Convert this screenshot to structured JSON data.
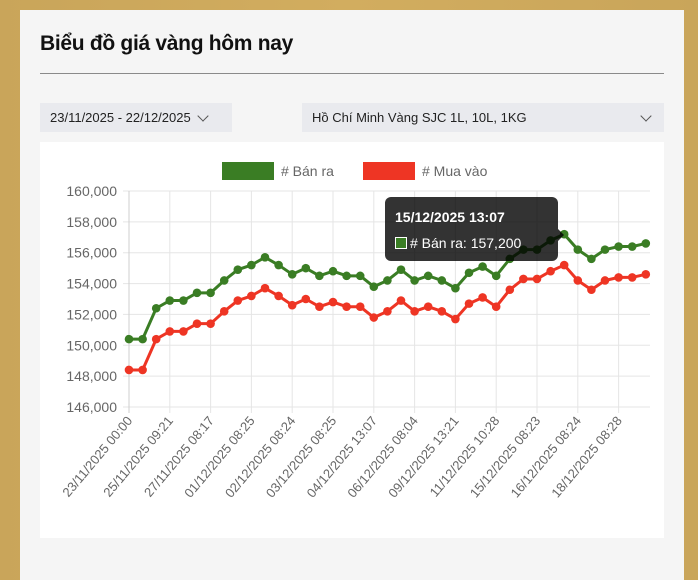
{
  "header": {
    "title": "Biểu đồ giá vàng hôm nay"
  },
  "filters": {
    "date_range": "23/11/2025 - 22/12/2025",
    "product": "Hồ Chí Minh Vàng SJC 1L, 10L, 1KG"
  },
  "colors": {
    "sell": "#3a7d24",
    "buy": "#ee3524",
    "grid": "#e5e5e5",
    "axis_text": "#666666"
  },
  "tooltip": {
    "title": "15/12/2025 13:07",
    "label": "# Bán ra: 157,200",
    "index": 32
  },
  "chart_data": {
    "type": "line",
    "title": "Biểu đồ giá vàng hôm nay",
    "xlabel": "",
    "ylabel": "",
    "ylim": [
      146000,
      160000
    ],
    "y_ticks": [
      160000,
      158000,
      156000,
      154000,
      152000,
      150000,
      148000,
      146000
    ],
    "y_tick_labels": [
      "160,000",
      "158,000",
      "156,000",
      "154,000",
      "152,000",
      "150,000",
      "148,000",
      "146,000"
    ],
    "grid": true,
    "legend_position": "top",
    "x_tick_labels": [
      "23/11/2025 00:00",
      "25/11/2025 09:21",
      "27/11/2025 08:17",
      "01/12/2025 08:25",
      "02/12/2025 08:24",
      "03/12/2025 08:25",
      "04/12/2025 13:07",
      "06/12/2025 08:04",
      "09/12/2025 13:21",
      "11/12/2025 10:28",
      "15/12/2025 08:23",
      "16/12/2025 08:24",
      "18/12/2025 08:28"
    ],
    "x_tick_every": 3,
    "point_count": 39,
    "series": [
      {
        "name": "# Bán ra",
        "color": "#3a7d24",
        "values": [
          150400,
          150400,
          152400,
          152900,
          152900,
          153400,
          153400,
          154200,
          154900,
          155200,
          155700,
          155200,
          154600,
          155000,
          154500,
          154800,
          154500,
          154500,
          153800,
          154200,
          154900,
          154200,
          154500,
          154200,
          153700,
          154700,
          155100,
          154500,
          155600,
          156200,
          156200,
          156800,
          157200,
          156200,
          155600,
          156200,
          156400,
          156400,
          156600
        ]
      },
      {
        "name": "# Mua vào",
        "color": "#ee3524",
        "values": [
          148400,
          148400,
          150400,
          150900,
          150900,
          151400,
          151400,
          152200,
          152900,
          153200,
          153700,
          153200,
          152600,
          153000,
          152500,
          152800,
          152500,
          152500,
          151800,
          152200,
          152900,
          152200,
          152500,
          152200,
          151700,
          152700,
          153100,
          152500,
          153600,
          154300,
          154300,
          154800,
          155200,
          154200,
          153600,
          154200,
          154400,
          154400,
          154600
        ]
      }
    ]
  }
}
